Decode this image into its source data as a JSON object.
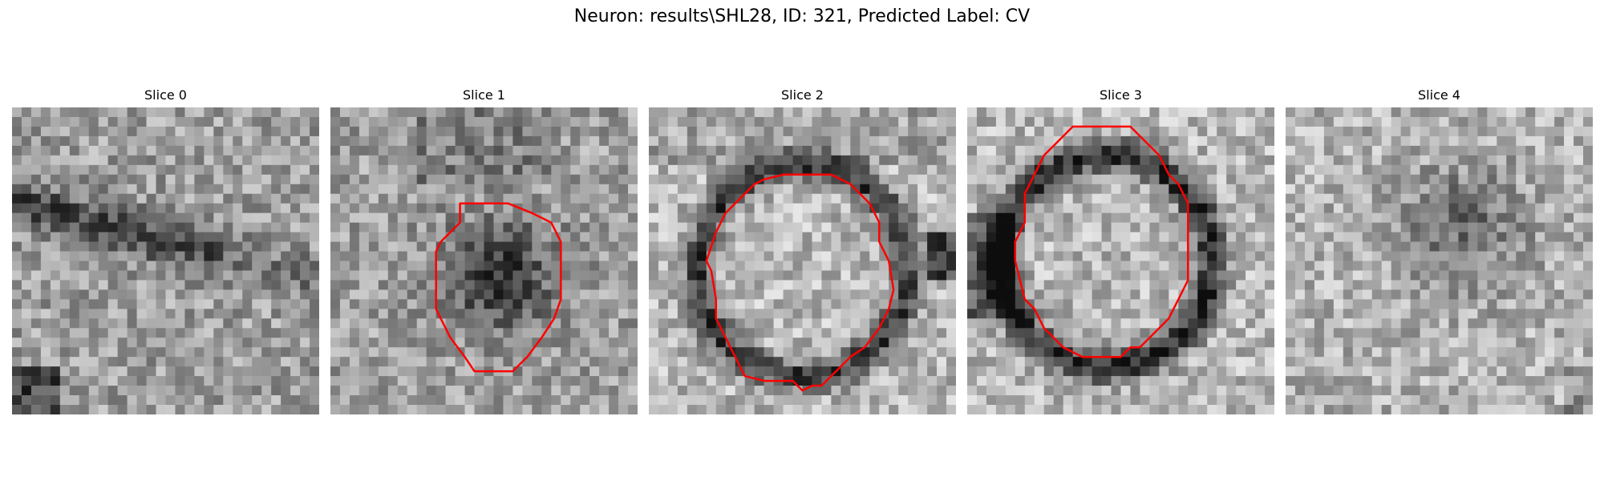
{
  "figure": {
    "title": "Neuron: results\\SHL28, ID: 321, Predicted Label: CV"
  },
  "slices": [
    {
      "title": "Slice 0",
      "has_contour": false
    },
    {
      "title": "Slice 1",
      "has_contour": true
    },
    {
      "title": "Slice 2",
      "has_contour": true
    },
    {
      "title": "Slice 3",
      "has_contour": true
    },
    {
      "title": "Slice 4",
      "has_contour": false
    }
  ],
  "colors": {
    "contour": "#ff0000",
    "background": "#ffffff"
  }
}
